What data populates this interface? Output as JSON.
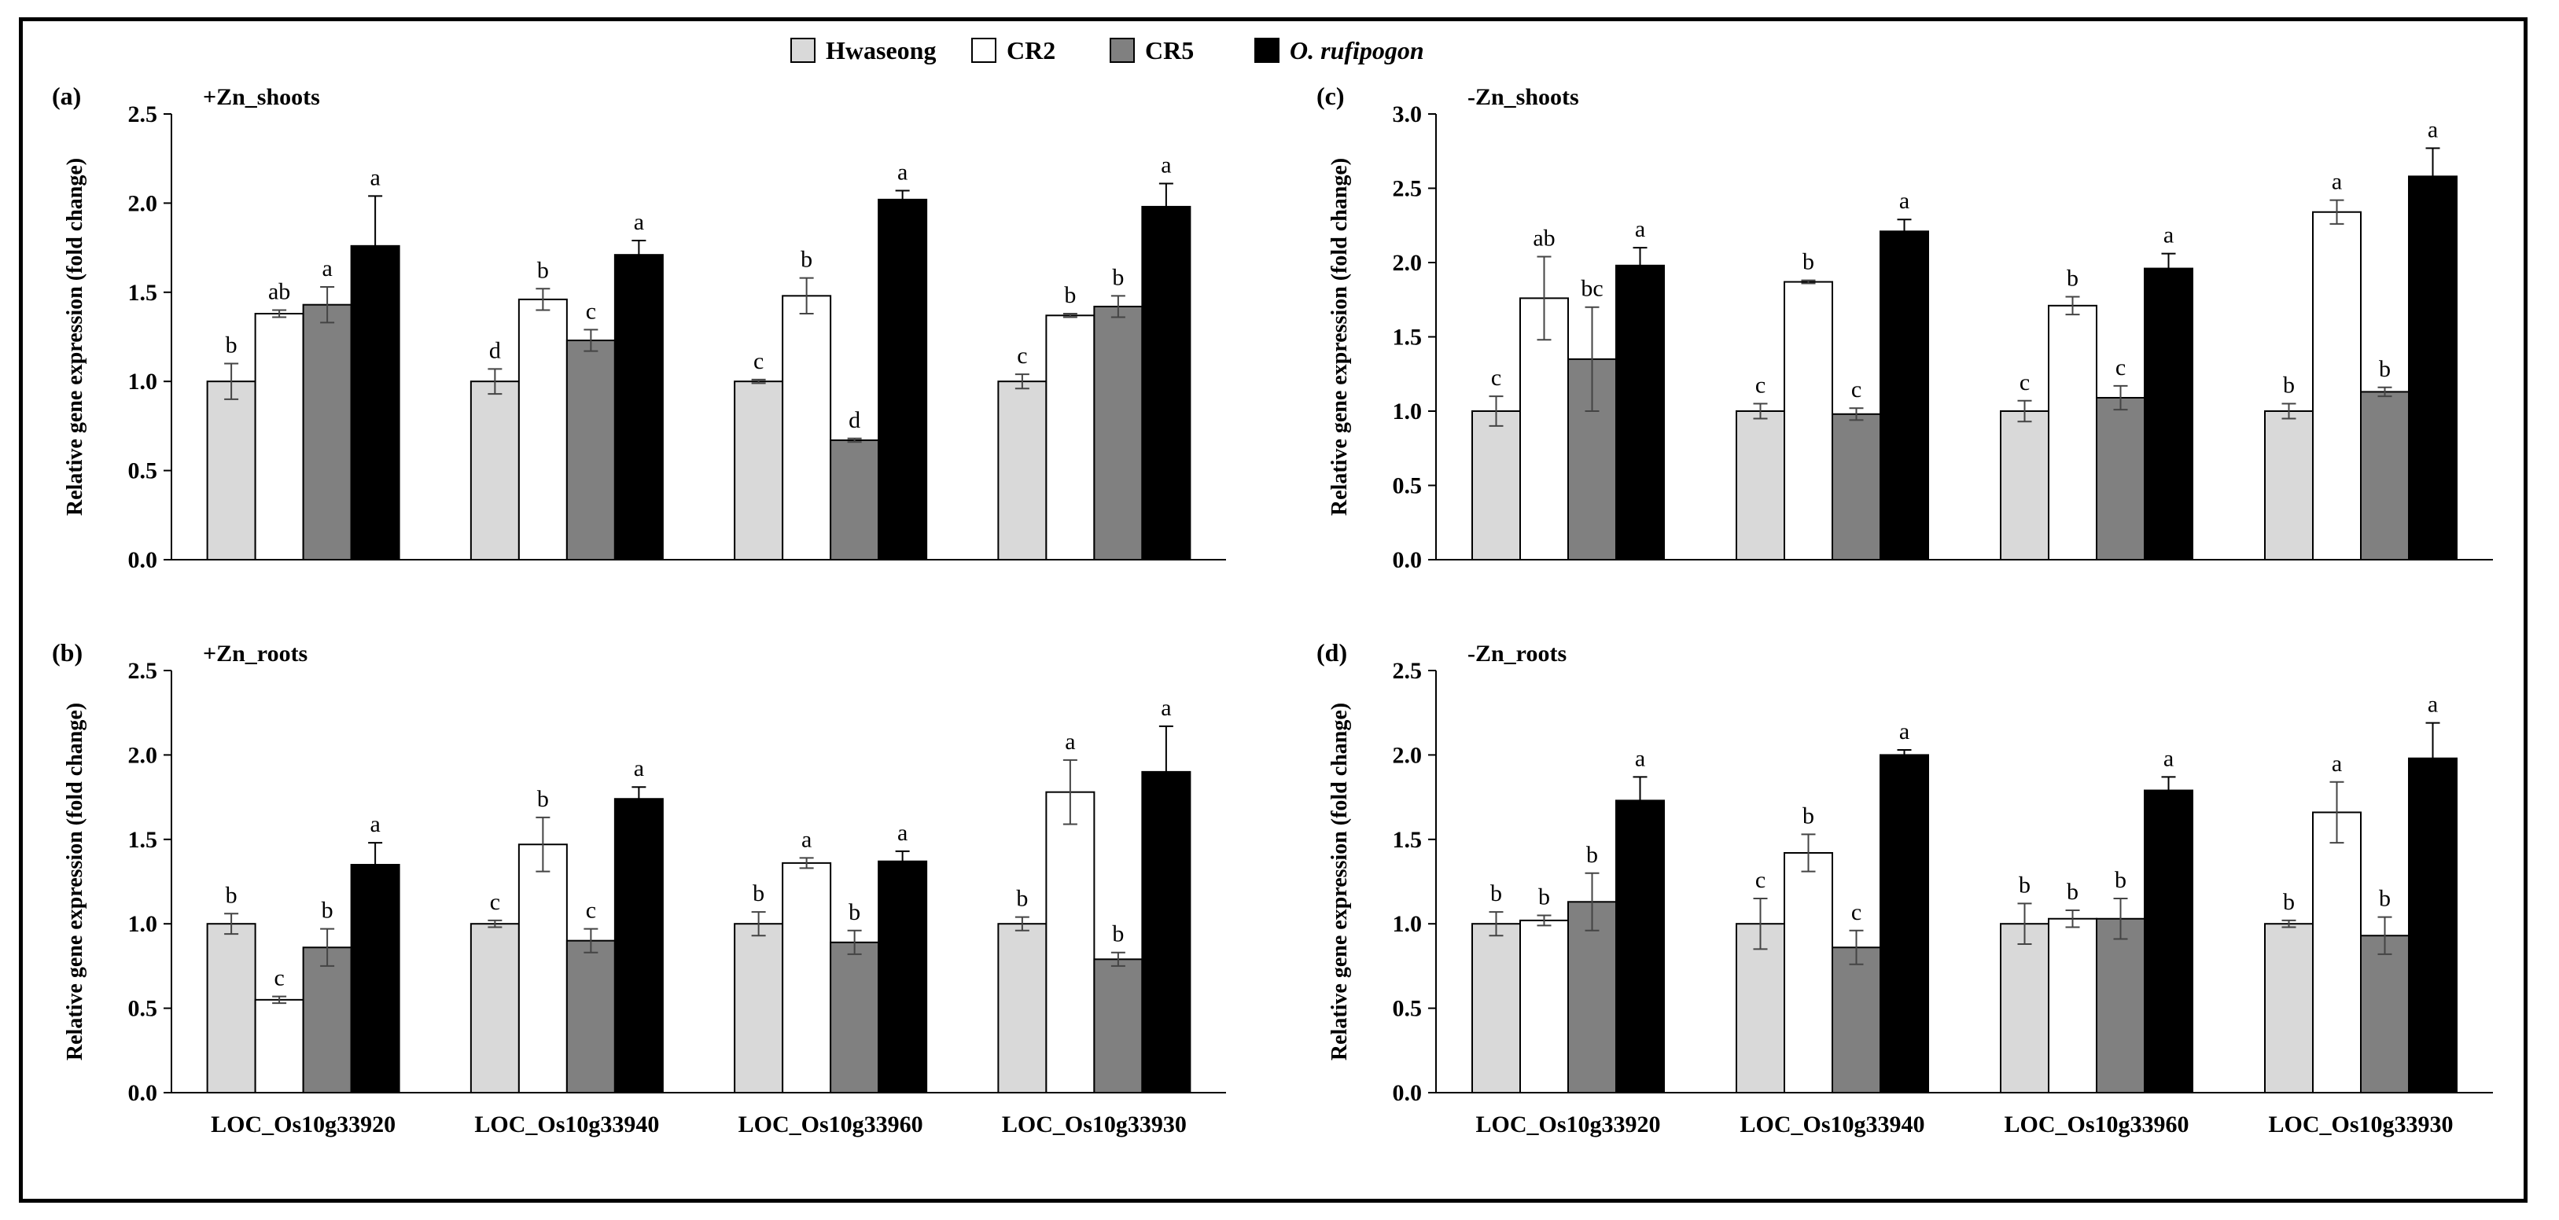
{
  "legend": {
    "entries": [
      {
        "label": "Hwaseong",
        "color": "#d9d9d9",
        "italic": false
      },
      {
        "label": "CR2",
        "color": "#ffffff",
        "italic": false
      },
      {
        "label": "CR5",
        "color": "#808080",
        "italic": false
      },
      {
        "label": "O. rufipogon",
        "color": "#000000",
        "italic": true
      }
    ]
  },
  "chart_data": [
    {
      "type": "bar",
      "panel_label": "(a)",
      "title": "+Zn_shoots",
      "ylabel": "Relative gene expression (fold change)",
      "xlabel": "",
      "ylim": [
        0,
        2.5
      ],
      "yticks": [
        "0.0",
        "0.5",
        "1.0",
        "1.5",
        "2.0",
        "2.5"
      ],
      "categories": [
        "LOC_Os10g33920",
        "LOC_Os10g33940",
        "LOC_Os10g33960",
        "LOC_Os10g33930"
      ],
      "series": [
        {
          "name": "Hwaseong",
          "values": [
            1.0,
            1.0,
            1.0,
            1.0
          ],
          "errors": [
            0.1,
            0.07,
            0.01,
            0.04
          ],
          "letters": [
            "b",
            "d",
            "c",
            "c"
          ]
        },
        {
          "name": "CR2",
          "values": [
            1.38,
            1.46,
            1.48,
            1.37
          ],
          "errors": [
            0.02,
            0.06,
            0.1,
            0.01
          ],
          "letters": [
            "ab",
            "b",
            "b",
            "b"
          ]
        },
        {
          "name": "CR5",
          "values": [
            1.43,
            1.23,
            0.67,
            1.42
          ],
          "errors": [
            0.1,
            0.06,
            0.01,
            0.06
          ],
          "letters": [
            "a",
            "c",
            "d",
            "b"
          ]
        },
        {
          "name": "O. rufipogon",
          "values": [
            1.76,
            1.71,
            2.02,
            1.98
          ],
          "errors": [
            0.28,
            0.08,
            0.05,
            0.13
          ],
          "letters": [
            "a",
            "a",
            "a",
            "a"
          ]
        }
      ]
    },
    {
      "type": "bar",
      "panel_label": "(b)",
      "title": "+Zn_roots",
      "ylabel": "Relative gene expression (fold change)",
      "xlabel": "",
      "ylim": [
        0,
        2.5
      ],
      "yticks": [
        "0.0",
        "0.5",
        "1.0",
        "1.5",
        "2.0",
        "2.5"
      ],
      "categories": [
        "LOC_Os10g33920",
        "LOC_Os10g33940",
        "LOC_Os10g33960",
        "LOC_Os10g33930"
      ],
      "series": [
        {
          "name": "Hwaseong",
          "values": [
            1.0,
            1.0,
            1.0,
            1.0
          ],
          "errors": [
            0.06,
            0.02,
            0.07,
            0.04
          ],
          "letters": [
            "b",
            "c",
            "b",
            "b"
          ]
        },
        {
          "name": "CR2",
          "values": [
            0.55,
            1.47,
            1.36,
            1.78
          ],
          "errors": [
            0.02,
            0.16,
            0.03,
            0.19
          ],
          "letters": [
            "c",
            "b",
            "a",
            "a"
          ]
        },
        {
          "name": "CR5",
          "values": [
            0.86,
            0.9,
            0.89,
            0.79
          ],
          "errors": [
            0.11,
            0.07,
            0.07,
            0.04
          ],
          "letters": [
            "b",
            "c",
            "b",
            "b"
          ]
        },
        {
          "name": "O. rufipogon",
          "values": [
            1.35,
            1.74,
            1.37,
            1.9
          ],
          "errors": [
            0.13,
            0.07,
            0.06,
            0.27
          ],
          "letters": [
            "a",
            "a",
            "a",
            "a"
          ]
        }
      ]
    },
    {
      "type": "bar",
      "panel_label": "(c)",
      "title": "-Zn_shoots",
      "ylabel": "Relative gene expression (fold change)",
      "xlabel": "",
      "ylim": [
        0,
        3.0
      ],
      "yticks": [
        "0.0",
        "0.5",
        "1.0",
        "1.5",
        "2.0",
        "2.5",
        "3.0"
      ],
      "categories": [
        "LOC_Os10g33920",
        "LOC_Os10g33940",
        "LOC_Os10g33960",
        "LOC_Os10g33930"
      ],
      "series": [
        {
          "name": "Hwaseong",
          "values": [
            1.0,
            1.0,
            1.0,
            1.0
          ],
          "errors": [
            0.1,
            0.05,
            0.07,
            0.05
          ],
          "letters": [
            "c",
            "c",
            "c",
            "b"
          ]
        },
        {
          "name": "CR2",
          "values": [
            1.76,
            1.87,
            1.71,
            2.34
          ],
          "errors": [
            0.28,
            0.01,
            0.06,
            0.08
          ],
          "letters": [
            "ab",
            "b",
            "b",
            "a"
          ]
        },
        {
          "name": "CR5",
          "values": [
            1.35,
            0.98,
            1.09,
            1.13
          ],
          "errors": [
            0.35,
            0.04,
            0.08,
            0.03
          ],
          "letters": [
            "bc",
            "c",
            "c",
            "b"
          ]
        },
        {
          "name": "O. rufipogon",
          "values": [
            1.98,
            2.21,
            1.96,
            2.58
          ],
          "errors": [
            0.12,
            0.08,
            0.1,
            0.19
          ],
          "letters": [
            "a",
            "a",
            "a",
            "a"
          ]
        }
      ]
    },
    {
      "type": "bar",
      "panel_label": "(d)",
      "title": "-Zn_roots",
      "ylabel": "Relative gene expression (fold change)",
      "xlabel": "",
      "ylim": [
        0,
        2.5
      ],
      "yticks": [
        "0.0",
        "0.5",
        "1.0",
        "1.5",
        "2.0",
        "2.5"
      ],
      "categories": [
        "LOC_Os10g33920",
        "LOC_Os10g33940",
        "LOC_Os10g33960",
        "LOC_Os10g33930"
      ],
      "series": [
        {
          "name": "Hwaseong",
          "values": [
            1.0,
            1.0,
            1.0,
            1.0
          ],
          "errors": [
            0.07,
            0.15,
            0.12,
            0.02
          ],
          "letters": [
            "b",
            "c",
            "b",
            "b"
          ]
        },
        {
          "name": "CR2",
          "values": [
            1.02,
            1.42,
            1.03,
            1.66
          ],
          "errors": [
            0.03,
            0.11,
            0.05,
            0.18
          ],
          "letters": [
            "b",
            "b",
            "b",
            "a"
          ]
        },
        {
          "name": "CR5",
          "values": [
            1.13,
            0.86,
            1.03,
            0.93
          ],
          "errors": [
            0.17,
            0.1,
            0.12,
            0.11
          ],
          "letters": [
            "b",
            "c",
            "b",
            "b"
          ]
        },
        {
          "name": "O. rufipogon",
          "values": [
            1.73,
            2.0,
            1.79,
            1.98
          ],
          "errors": [
            0.14,
            0.03,
            0.08,
            0.21
          ],
          "letters": [
            "a",
            "a",
            "a",
            "a"
          ]
        }
      ]
    }
  ]
}
